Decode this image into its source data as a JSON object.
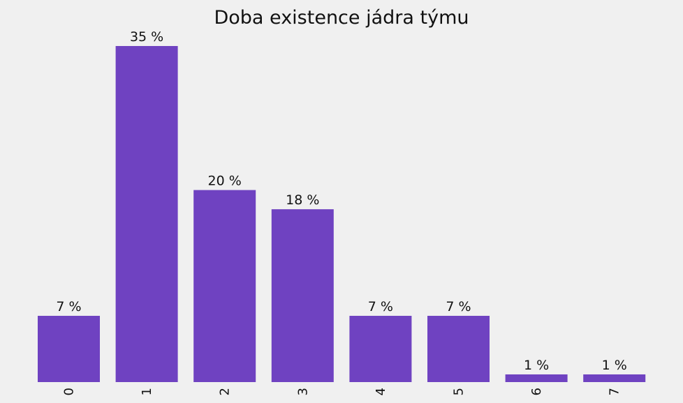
{
  "chart_data": {
    "type": "bar",
    "title": "Doba existence jádra týmu",
    "xlabel": "",
    "ylabel": "",
    "categories": [
      "0",
      "1",
      "2",
      "3",
      "4",
      "5",
      "6",
      "7"
    ],
    "values": [
      6.9,
      35,
      20,
      18,
      6.9,
      6.9,
      0.8,
      0.8
    ],
    "data_labels": [
      "7 %",
      "35 %",
      "20 %",
      "18 %",
      "7 %",
      "7 %",
      "1 %",
      "1 %"
    ],
    "ylim": [
      0,
      35
    ],
    "grid": false,
    "bar_color": "#6f42c1",
    "background": "#f0f0f0"
  }
}
